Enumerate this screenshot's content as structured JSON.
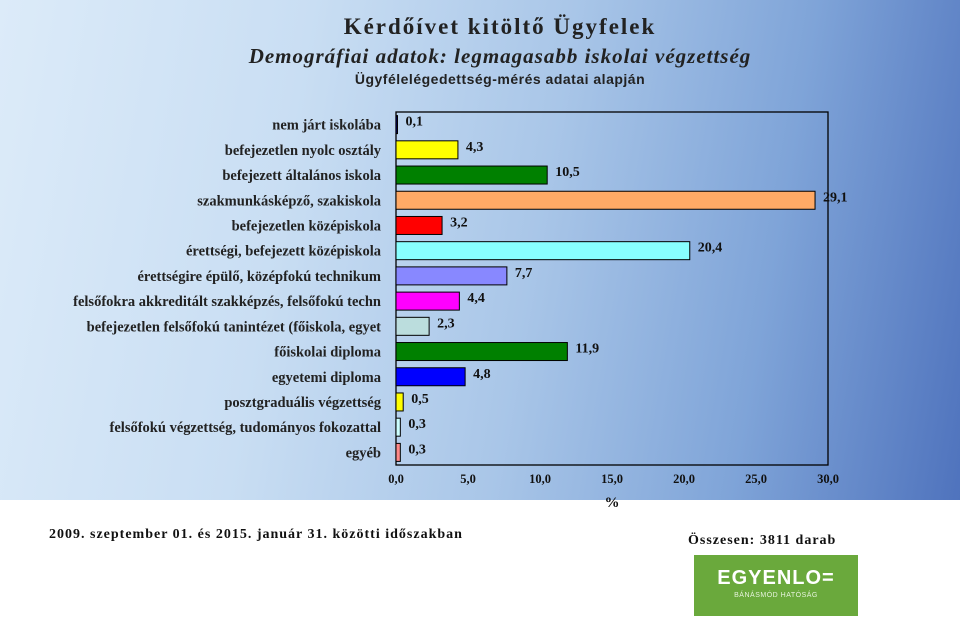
{
  "header": {
    "title": "Kérdőívet kitöltő Ügyfelek",
    "subtitle": "Demográfiai adatok: legmagasabb iskolai végzettség",
    "source": "Ügyfélelégedettség-mérés adatai alapján"
  },
  "chart_data": {
    "type": "bar",
    "orientation": "horizontal",
    "categories": [
      "nem járt iskolába",
      "befejezetlen nyolc osztály",
      "befejezett általános iskola",
      "szakmunkásképző, szakiskola",
      "befejezetlen középiskola",
      "érettségi, befejezett középiskola",
      "érettségire épülő, középfokú technikum",
      "felsőfokra akkreditált szakképzés, felsőfokú techn",
      "befejezetlen felsőfokú tanintézet (főiskola, egyet",
      "főiskolai diploma",
      "egyetemi diploma",
      "posztgraduális végzettség",
      "felsőfokú végzettség, tudományos fokozattal",
      "egyéb"
    ],
    "values": [
      0.1,
      4.3,
      10.5,
      29.1,
      3.2,
      20.4,
      7.7,
      4.4,
      2.3,
      11.9,
      4.8,
      0.5,
      0.3,
      0.3
    ],
    "value_labels": [
      "0,1",
      "4,3",
      "10,5",
      "29,1",
      "3,2",
      "20,4",
      "7,7",
      "4,4",
      "2,3",
      "11,9",
      "4,8",
      "0,5",
      "0,3",
      "0,3"
    ],
    "colors": [
      "#000080",
      "#ffff00",
      "#008000",
      "#ffaa66",
      "#ff0000",
      "#88ffff",
      "#8888ff",
      "#ff00ff",
      "#bbdddd",
      "#008000",
      "#0000ff",
      "#ffff00",
      "#ccffff",
      "#ff8888"
    ],
    "xlim": [
      0,
      30
    ],
    "xticks": [
      0,
      5,
      10,
      15,
      20,
      25,
      30
    ],
    "xtick_labels": [
      "0,0",
      "5,0",
      "10,0",
      "15,0",
      "20,0",
      "25,0",
      "30,0"
    ],
    "xlabel": "%",
    "ylabel": "",
    "grid": false,
    "legend": "none"
  },
  "footer": {
    "period": "2009. szeptember 01. és 2015. január 31. közötti időszakban",
    "total": "Összesen:  3811 darab"
  },
  "logo": {
    "title": "EGYENLO=",
    "subtitle": "BÁNÁSMÓD HATÓSÁG"
  }
}
